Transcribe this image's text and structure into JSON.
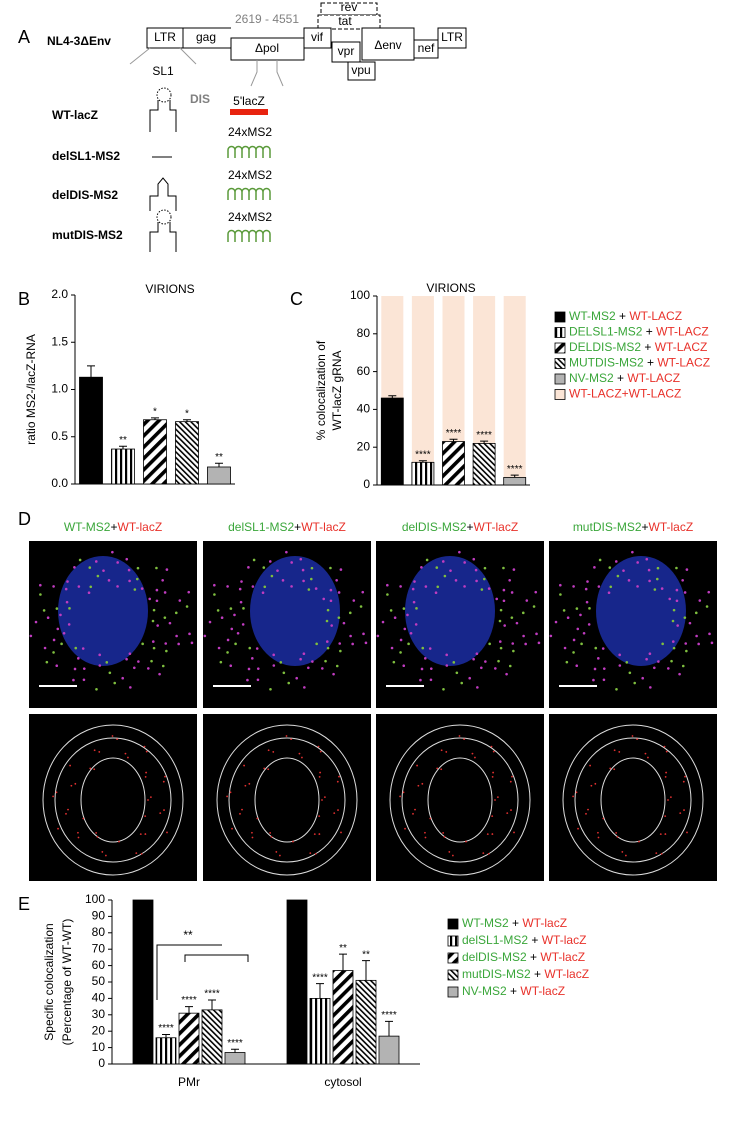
{
  "panel_labels": [
    "A",
    "B",
    "C",
    "D",
    "E"
  ],
  "diagram": {
    "construct": "NL4-3ΔEnv",
    "deletion": "2619 - 4551",
    "genes": {
      "ltr5": "LTR",
      "gag": "gag",
      "pol": "Δpol",
      "vif": "vif",
      "vpr": "vpr",
      "env": "Δenv",
      "nef": "nef",
      "ltr3": "LTR",
      "rev": "rev",
      "tat": "tat",
      "vpu": "vpu"
    },
    "sl1": "SL1",
    "dis": "DIS",
    "lacz": "5'lacZ",
    "constructs": [
      "WT-lacZ",
      "delSL1-MS2",
      "delDIS-MS2",
      "mutDIS-MS2"
    ],
    "ms2": [
      "24xMS2",
      "24xMS2",
      "24xMS2"
    ]
  },
  "images": {
    "titles": [
      {
        "green": "WT-MS2",
        "sep": "+",
        "red": "WT-lacZ"
      },
      {
        "green": "delSL1-MS2",
        "sep": "+",
        "red": "WT-lacZ"
      },
      {
        "green": "delDIS-MS2",
        "sep": "+",
        "red": "WT-lacZ"
      },
      {
        "green": "mutDIS-MS2",
        "sep": "+",
        "red": "WT-lacZ"
      }
    ]
  },
  "chart_data": [
    {
      "type": "bar",
      "title": "VIRIONS",
      "ylabel": [
        "ratio MS2-/lacZ-RNA"
      ],
      "values": [
        1.13,
        0.37,
        0.68,
        0.66,
        0.18
      ],
      "errors": [
        0.12,
        0.03,
        0.02,
        0.02,
        0.04
      ],
      "annotations": [
        null,
        "**",
        "*",
        "*",
        "**"
      ],
      "fills": [
        "#000000",
        "vertical-stripes",
        "diagonal-stripes",
        "dense-stripes",
        "#b3b3b3"
      ],
      "ylim": [
        0,
        2
      ],
      "yticks": [
        {
          "value": 0,
          "label": "0.0"
        },
        {
          "value": 0.5,
          "label": "0.5"
        },
        {
          "value": 1,
          "label": "1.0"
        },
        {
          "value": 1.5,
          "label": "1.5"
        },
        {
          "value": 2,
          "label": "2.0"
        }
      ]
    },
    {
      "type": "stacked-bar",
      "title": "VIRIONS",
      "ylabel": [
        "% colocalization of",
        "WT-lacZ gRNA"
      ],
      "values": [
        46,
        12,
        23,
        22,
        4
      ],
      "errors": [
        1.2,
        0.8,
        1.2,
        1.2,
        1.2
      ],
      "annotations": [
        null,
        "****",
        "****",
        "****",
        "****"
      ],
      "fills": [
        "#000000",
        "vertical-stripes",
        "diagonal-stripes",
        "dense-stripes",
        "#b3b3b3"
      ],
      "remainder": {
        "color": "#fbe5d6",
        "values": [
          54,
          88,
          77,
          78,
          96
        ]
      },
      "ylim": [
        0,
        100
      ],
      "yticks": [
        0,
        20,
        40,
        60,
        80,
        100
      ],
      "legend": [
        {
          "green": "WT-MS2",
          "sep": " + ",
          "red": "WT-LACZ"
        },
        {
          "green": "DELSL1-MS2",
          "sep": " + ",
          "red": "WT-LACZ"
        },
        {
          "green": "DELDIS-MS2",
          "sep": " + ",
          "red": "WT-LACZ"
        },
        {
          "green": "MUTDIS-MS2",
          "sep": " + ",
          "red": "WT-LACZ"
        },
        {
          "green": "NV-MS2",
          "sep": " + ",
          "red": "WT-LACZ"
        },
        {
          "red": "WT-LACZ+WT-LACZ"
        }
      ]
    },
    {
      "type": "grouped-bar",
      "ylabel": [
        "Specific colocalization",
        "(Percentage of WT-WT)"
      ],
      "categories": [
        "PMr",
        "cytosol"
      ],
      "bracket_label": "**",
      "series": [
        {
          "fill": "#000000",
          "values": [
            100,
            100
          ],
          "errors": [
            null,
            null
          ],
          "annotations": [
            null,
            null
          ]
        },
        {
          "fill": "vertical-stripes",
          "values": [
            16,
            40
          ],
          "errors": [
            2,
            9
          ],
          "annotations": [
            "****",
            "****"
          ]
        },
        {
          "fill": "diagonal-stripes",
          "values": [
            31,
            57
          ],
          "errors": [
            4,
            10
          ],
          "annotations": [
            "****",
            "**"
          ]
        },
        {
          "fill": "dense-stripes",
          "values": [
            33,
            51
          ],
          "errors": [
            6,
            12
          ],
          "annotations": [
            "****",
            "**"
          ]
        },
        {
          "fill": "#b3b3b3",
          "values": [
            7,
            17
          ],
          "errors": [
            2,
            9
          ],
          "annotations": [
            "****",
            "****"
          ]
        }
      ],
      "ylim": [
        0,
        100
      ],
      "yticks": [
        0,
        10,
        20,
        30,
        40,
        50,
        60,
        70,
        80,
        90,
        100
      ],
      "legend": [
        {
          "green": "WT-MS2",
          "sep": " + ",
          "red": "WT-lacZ"
        },
        {
          "green": "delSL1-MS2",
          "sep": " + ",
          "red": "WT-lacZ"
        },
        {
          "green": "delDIS-MS2",
          "sep": " + ",
          "red": "WT-lacZ"
        },
        {
          "green": "mutDIS-MS2",
          "sep": " + ",
          "red": "WT-lacZ"
        },
        {
          "green": "NV-MS2",
          "sep": " + ",
          "red": "WT-lacZ"
        }
      ]
    }
  ]
}
